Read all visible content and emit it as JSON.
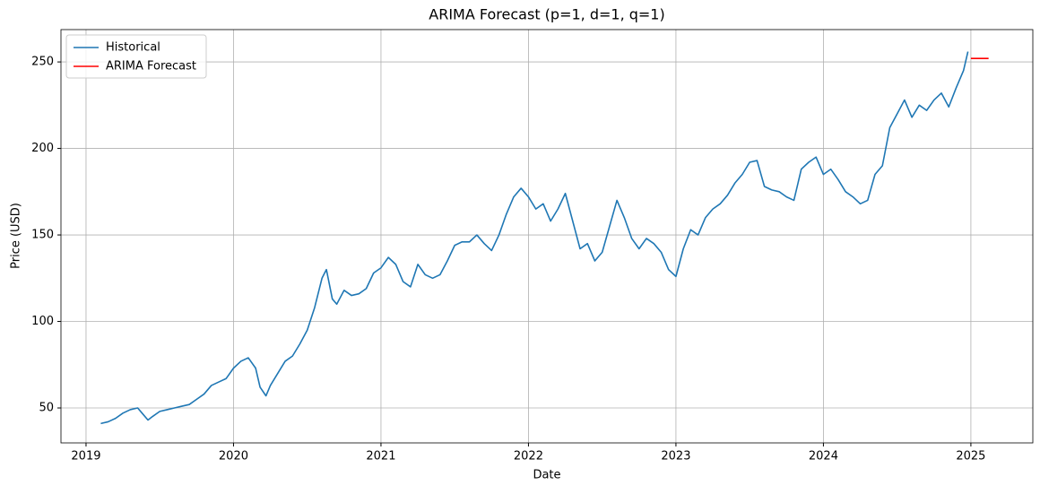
{
  "chart_data": {
    "type": "line",
    "title": "ARIMA Forecast (p=1, d=1, q=1)",
    "x_label": "Date",
    "y_label": "Price (USD)",
    "xlim": [
      2018.83,
      2025.42
    ],
    "xticks": [
      2019,
      2020,
      2021,
      2022,
      2023,
      2024,
      2025
    ],
    "ylim": [
      29.8,
      268.7
    ],
    "yticks": [
      50,
      100,
      150,
      200,
      250
    ],
    "grid": true,
    "legend": "upper-left",
    "series": [
      {
        "name": "Historical",
        "color": "#1f77b4",
        "x": [
          2019.1,
          2019.15,
          2019.2,
          2019.25,
          2019.3,
          2019.35,
          2019.38,
          2019.42,
          2019.45,
          2019.5,
          2019.55,
          2019.6,
          2019.65,
          2019.7,
          2019.75,
          2019.8,
          2019.85,
          2019.9,
          2019.95,
          2020.0,
          2020.05,
          2020.1,
          2020.15,
          2020.18,
          2020.22,
          2020.25,
          2020.3,
          2020.35,
          2020.4,
          2020.45,
          2020.5,
          2020.55,
          2020.6,
          2020.63,
          2020.67,
          2020.7,
          2020.75,
          2020.8,
          2020.85,
          2020.9,
          2020.95,
          2021.0,
          2021.05,
          2021.1,
          2021.15,
          2021.2,
          2021.25,
          2021.3,
          2021.35,
          2021.4,
          2021.45,
          2021.5,
          2021.55,
          2021.6,
          2021.65,
          2021.7,
          2021.75,
          2021.8,
          2021.85,
          2021.9,
          2021.95,
          2022.0,
          2022.05,
          2022.1,
          2022.15,
          2022.2,
          2022.25,
          2022.3,
          2022.35,
          2022.4,
          2022.45,
          2022.5,
          2022.55,
          2022.6,
          2022.65,
          2022.7,
          2022.75,
          2022.8,
          2022.85,
          2022.9,
          2022.95,
          2023.0,
          2023.05,
          2023.1,
          2023.15,
          2023.2,
          2023.25,
          2023.3,
          2023.35,
          2023.4,
          2023.45,
          2023.5,
          2023.55,
          2023.6,
          2023.65,
          2023.7,
          2023.75,
          2023.8,
          2023.85,
          2023.9,
          2023.95,
          2024.0,
          2024.05,
          2024.1,
          2024.15,
          2024.2,
          2024.25,
          2024.3,
          2024.35,
          2024.4,
          2024.45,
          2024.5,
          2024.55,
          2024.6,
          2024.65,
          2024.7,
          2024.75,
          2024.8,
          2024.85,
          2024.9,
          2024.95,
          2024.98
        ],
        "values": [
          41,
          42,
          44,
          47,
          49,
          50,
          47,
          43,
          45,
          48,
          49,
          50,
          51,
          52,
          55,
          58,
          63,
          65,
          67,
          73,
          77,
          79,
          73,
          62,
          57,
          63,
          70,
          77,
          80,
          87,
          95,
          108,
          125,
          130,
          113,
          110,
          118,
          115,
          116,
          119,
          128,
          131,
          137,
          133,
          123,
          120,
          133,
          127,
          125,
          127,
          135,
          144,
          146,
          146,
          150,
          145,
          141,
          150,
          162,
          172,
          177,
          172,
          165,
          168,
          158,
          165,
          174,
          158,
          142,
          145,
          135,
          140,
          155,
          170,
          160,
          148,
          142,
          148,
          145,
          140,
          130,
          126,
          142,
          153,
          150,
          160,
          165,
          168,
          173,
          180,
          185,
          192,
          193,
          178,
          176,
          175,
          172,
          170,
          188,
          192,
          195,
          185,
          188,
          182,
          175,
          172,
          168,
          170,
          185,
          190,
          212,
          220,
          228,
          218,
          225,
          222,
          228,
          232,
          224,
          235,
          245,
          256
        ]
      },
      {
        "name": "ARIMA Forecast",
        "color": "#ff0000",
        "x": [
          2025.0,
          2025.12
        ],
        "values": [
          252,
          252
        ]
      }
    ]
  }
}
